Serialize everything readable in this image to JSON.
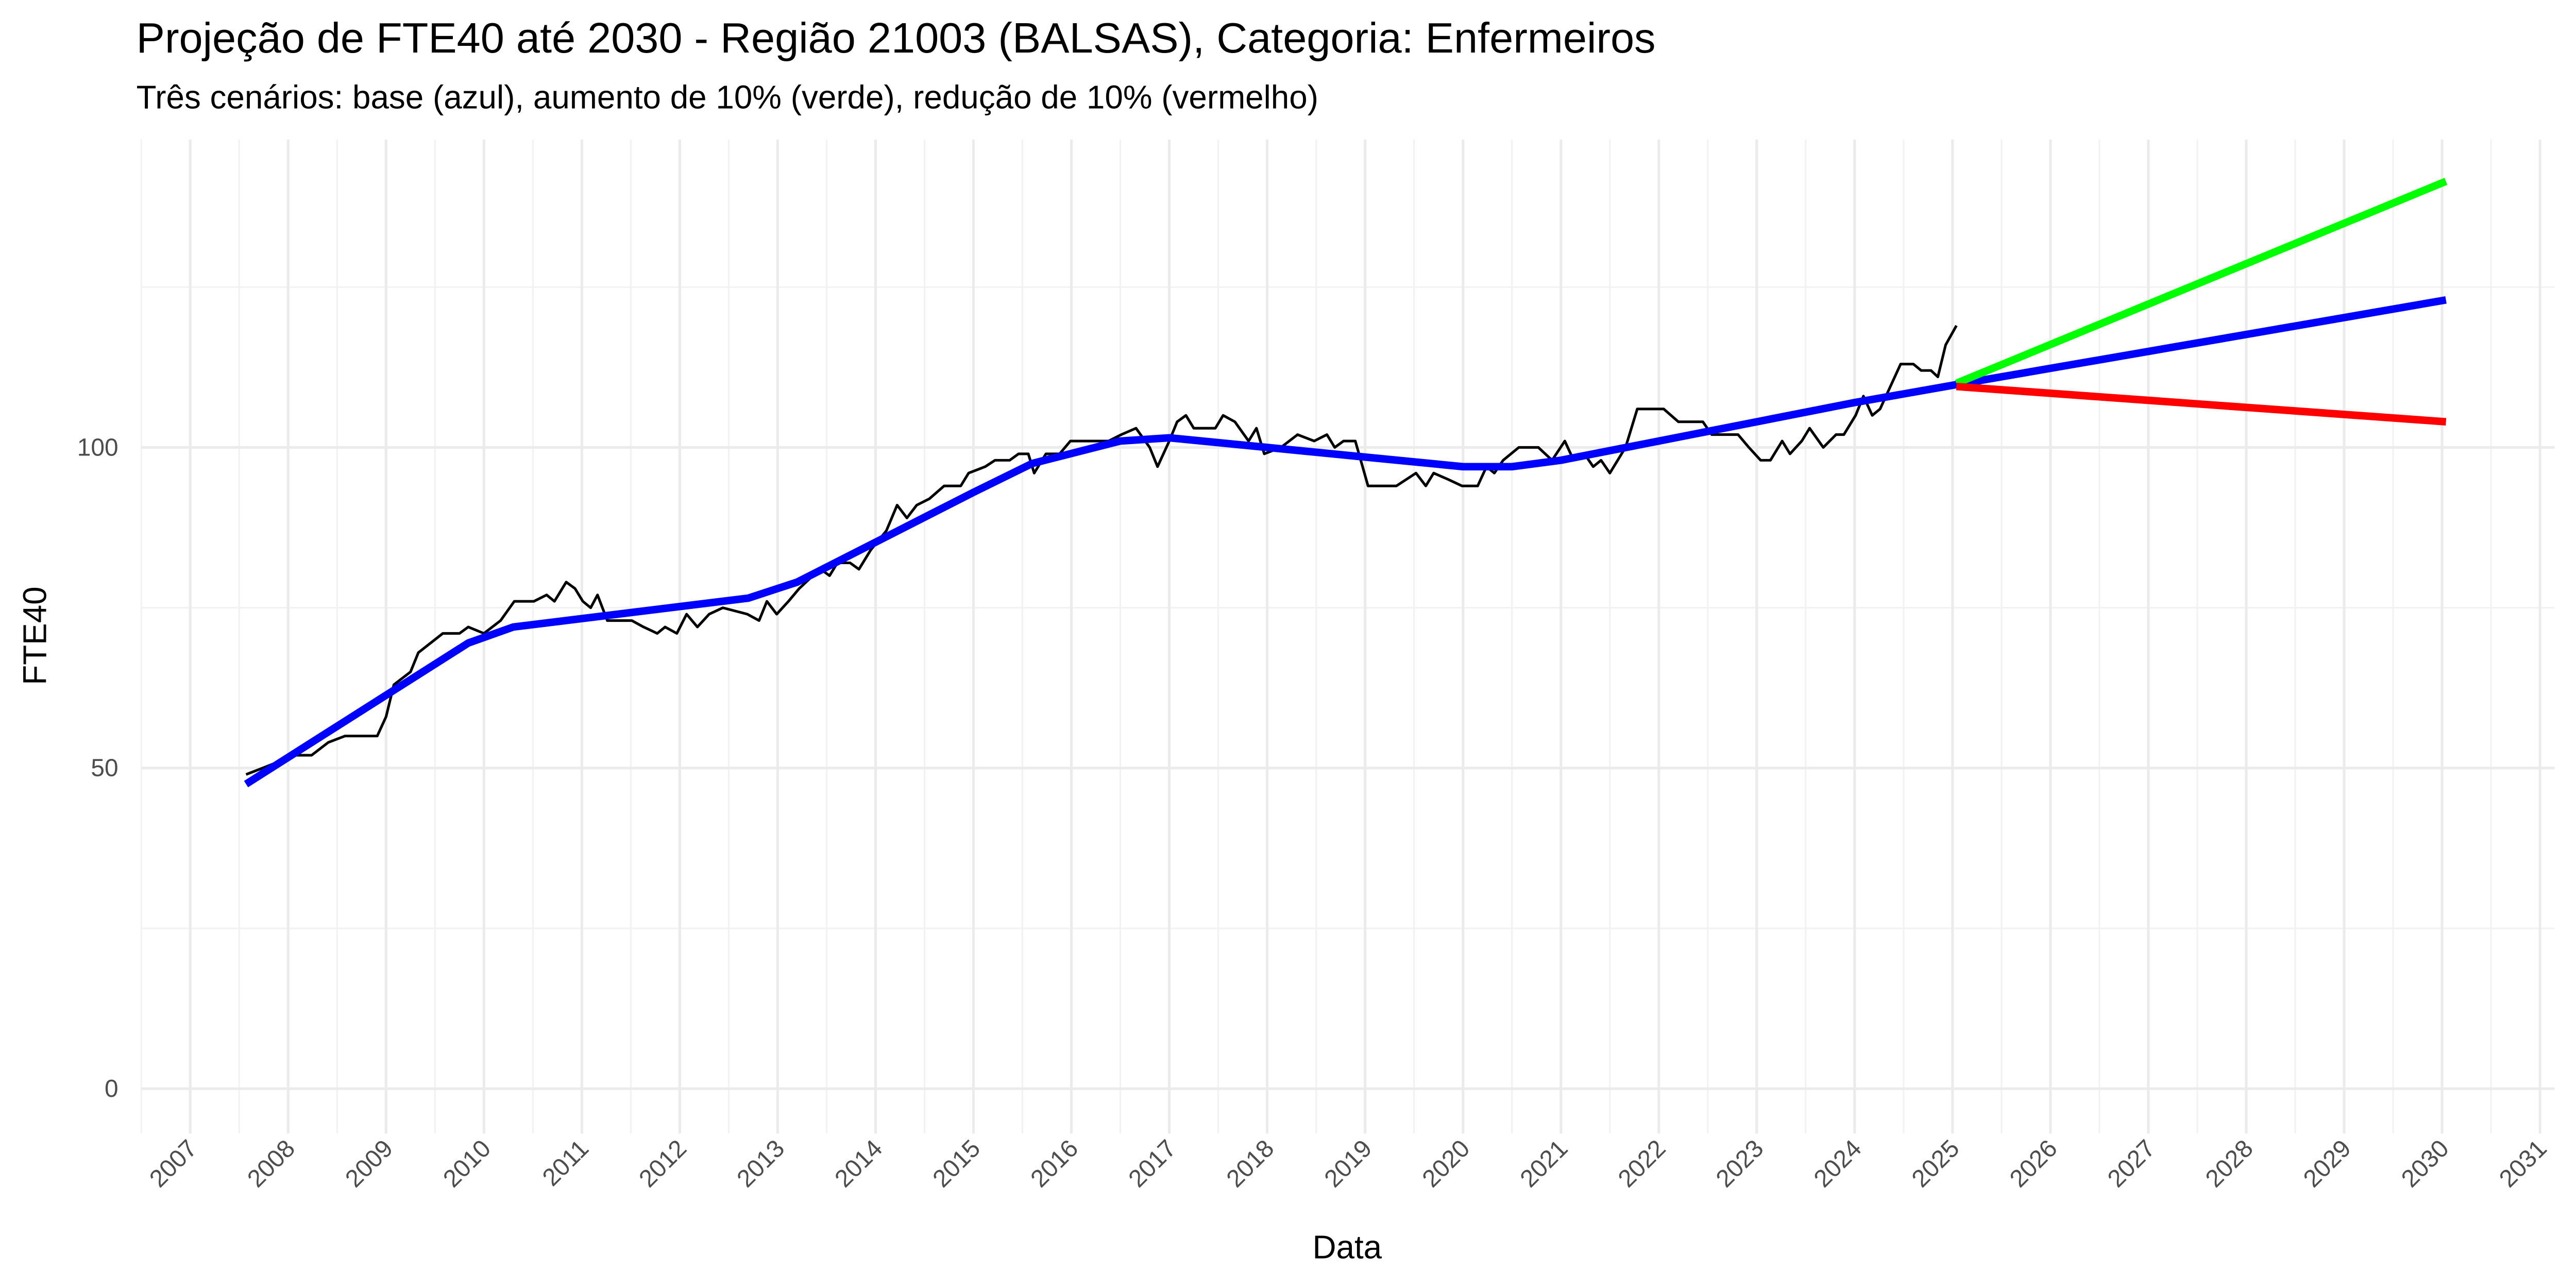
{
  "chart_data": {
    "type": "line",
    "title": "Projeção de FTE40 até 2030 - Região 21003 (BALSAS), Categoria: Enfermeiros",
    "subtitle": "Três cenários: base (azul), aumento de 10% (verde), redução de 10% (vermelho)",
    "x_label": "Data",
    "y_label": "FTE40",
    "xlim": [
      2006.5,
      2031.15
    ],
    "xticks": [
      2007,
      2008,
      2009,
      2010,
      2011,
      2012,
      2013,
      2014,
      2015,
      2016,
      2017,
      2018,
      2019,
      2020,
      2021,
      2022,
      2023,
      2024,
      2025,
      2026,
      2027,
      2028,
      2029,
      2030,
      2031
    ],
    "ylim": [
      -7,
      148
    ],
    "yticks": [
      0,
      50,
      100
    ],
    "grid": true,
    "series": [
      {
        "color": "#000000",
        "x": [
          2007.57,
          2007.74,
          2008.07,
          2008.24,
          2008.41,
          2008.58,
          2008.91,
          2009.0,
          2009.08,
          2009.25,
          2009.33,
          2009.58,
          2009.75,
          2009.84,
          2010.0,
          2010.17,
          2010.31,
          2010.51,
          2010.64,
          2010.72,
          2010.84,
          2010.93,
          2011.01,
          2011.09,
          2011.16,
          2011.26,
          2011.51,
          2011.63,
          2011.77,
          2011.85,
          2011.97,
          2012.07,
          2012.18,
          2012.3,
          2012.44,
          2012.69,
          2012.81,
          2012.89,
          2012.99,
          2013.11,
          2013.22,
          2013.36,
          2013.44,
          2013.53,
          2013.61,
          2013.74,
          2013.83,
          2013.95,
          2014.11,
          2014.22,
          2014.32,
          2014.42,
          2014.55,
          2014.7,
          2014.87,
          2014.95,
          2015.12,
          2015.22,
          2015.37,
          2015.46,
          2015.56,
          2015.62,
          2015.74,
          2015.88,
          2015.99,
          2016.13,
          2016.25,
          2016.38,
          2016.51,
          2016.66,
          2016.8,
          2016.88,
          2017.0,
          2017.08,
          2017.17,
          2017.25,
          2017.47,
          2017.55,
          2017.67,
          2017.81,
          2017.89,
          2017.97,
          2018.14,
          2018.31,
          2018.48,
          2018.61,
          2018.69,
          2018.78,
          2018.9,
          2019.03,
          2019.32,
          2019.52,
          2019.62,
          2019.7,
          2019.85,
          2019.99,
          2020.15,
          2020.24,
          2020.32,
          2020.41,
          2020.57,
          2020.77,
          2020.91,
          2021.04,
          2021.13,
          2021.24,
          2021.33,
          2021.41,
          2021.5,
          2021.66,
          2021.78,
          2022.05,
          2022.2,
          2022.45,
          2022.54,
          2022.81,
          2022.92,
          2023.04,
          2023.14,
          2023.26,
          2023.34,
          2023.46,
          2023.54,
          2023.68,
          2023.81,
          2023.89,
          2024.01,
          2024.09,
          2024.18,
          2024.26,
          2024.47,
          2024.6,
          2024.68,
          2024.78,
          2024.85,
          2024.93,
          2025.04
        ],
        "values": [
          49,
          50,
          52,
          52,
          54,
          55,
          55,
          58,
          63,
          65,
          68,
          71,
          71,
          72,
          71,
          73,
          76,
          76,
          77,
          76,
          79,
          78,
          76,
          75,
          77,
          73,
          73,
          72,
          71,
          72,
          71,
          74,
          72,
          74,
          75,
          74,
          73,
          76,
          74,
          76,
          78,
          80,
          81,
          80,
          82,
          82,
          81,
          84,
          87,
          91,
          89,
          91,
          92,
          94,
          94,
          96,
          97,
          98,
          98,
          99,
          99,
          96,
          99,
          99,
          101,
          101,
          101,
          101,
          102,
          103,
          100,
          97,
          101,
          104,
          105,
          103,
          103,
          105,
          104,
          101,
          103,
          99,
          100,
          102,
          101,
          102,
          100,
          101,
          101,
          94,
          94,
          96,
          94,
          96,
          95,
          94,
          94,
          97,
          96,
          98,
          100,
          100,
          98,
          101,
          98,
          99,
          97,
          98,
          96,
          100,
          106,
          106,
          104,
          104,
          102,
          102,
          100,
          98,
          98,
          101,
          99,
          101,
          103,
          100,
          102,
          102,
          105,
          108,
          105,
          106,
          113,
          113,
          112,
          112,
          111,
          116,
          119
        ]
      },
      {
        "color": "#0000ff",
        "x": [
          2007.57,
          2009.84,
          2010.3,
          2012.7,
          2013.2,
          2014.1,
          2015.0,
          2015.6,
          2016.5,
          2017.0,
          2018.0,
          2019.0,
          2020.0,
          2020.5,
          2021.0,
          2022.0,
          2023.0,
          2024.0,
          2025.04,
          2030.04
        ],
        "values": [
          47.5,
          69.5,
          72,
          76.5,
          79,
          86,
          93,
          97.5,
          101,
          101.5,
          100,
          98.5,
          97,
          97,
          98,
          101,
          104,
          107,
          109.8,
          123
        ]
      },
      {
        "color": "#00ff00",
        "x": [
          2025.04,
          2030.04
        ],
        "values": [
          110,
          141.5
        ]
      },
      {
        "color": "#ff0000",
        "x": [
          2025.04,
          2030.04
        ],
        "values": [
          109.5,
          104
        ]
      }
    ]
  }
}
